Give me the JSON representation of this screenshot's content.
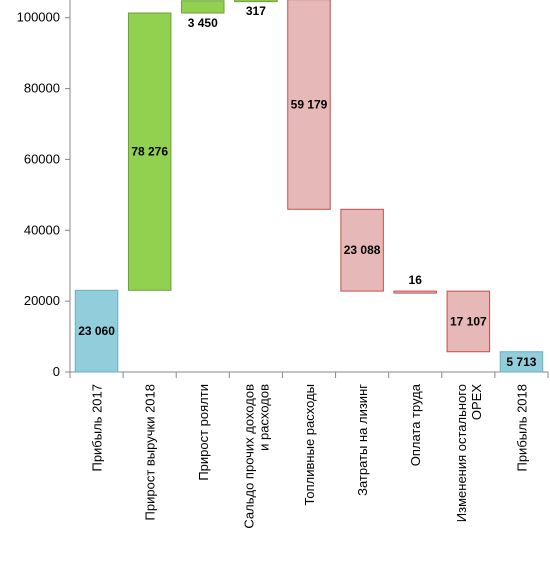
{
  "chart_data": {
    "type": "bar",
    "subtype": "waterfall",
    "ylim": [
      0,
      105000
    ],
    "yticks": [
      0,
      20000,
      40000,
      60000,
      80000,
      100000
    ],
    "grid": false,
    "categories": [
      [
        "Прибыль 2017"
      ],
      [
        "Прирост выручки 2018"
      ],
      [
        "Прирост роялти"
      ],
      [
        "Сальдо прочих доходов",
        "и расходов"
      ],
      [
        "Топливные расходы"
      ],
      [
        "Затраты на лизинг"
      ],
      [
        "Оплата труда"
      ],
      [
        "Изменения остального",
        "OPEX"
      ],
      [
        "Прибыль 2018"
      ]
    ],
    "bars": [
      {
        "base": 0,
        "value": 23060,
        "label": "23 060",
        "kind": "total"
      },
      {
        "base": 23060,
        "value": 78276,
        "label": "78 276",
        "kind": "increase"
      },
      {
        "base": 101336,
        "value": 3450,
        "label": "3 450",
        "kind": "increase"
      },
      {
        "base": 104786,
        "value": 317,
        "label": "317",
        "kind": "increase"
      },
      {
        "base": 45924,
        "value": 59179,
        "label": "59 179",
        "kind": "decrease"
      },
      {
        "base": 22836,
        "value": 23088,
        "label": "23 088",
        "kind": "decrease"
      },
      {
        "base": 22820,
        "value": 16,
        "label": "16",
        "kind": "decrease"
      },
      {
        "base": 5713,
        "value": 17107,
        "label": "17 107",
        "kind": "decrease"
      },
      {
        "base": 0,
        "value": 5713,
        "label": "5 713",
        "kind": "total"
      }
    ],
    "colors": {
      "total_fill": "#92cddc",
      "total_stroke": "#6aaebf",
      "increase_fill": "#92d050",
      "increase_stroke": "#6e9e3a",
      "decrease_fill": "#e6b8b8",
      "decrease_stroke": "#c0504d"
    }
  }
}
